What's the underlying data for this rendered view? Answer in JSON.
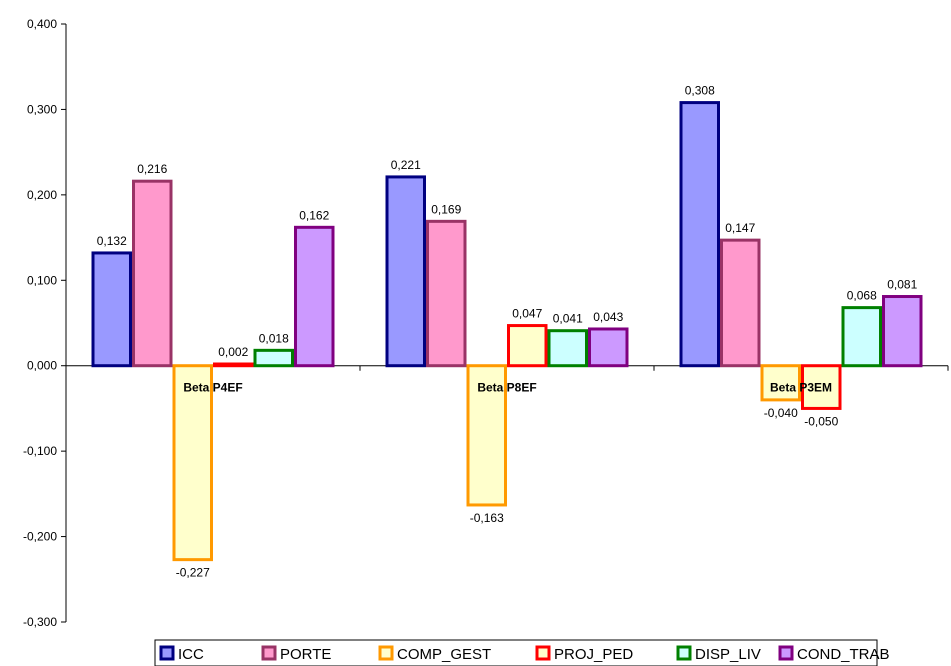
{
  "chart_data": {
    "type": "bar",
    "categories": [
      "Beta P4EF",
      "Beta P8EF",
      "Beta P3EM"
    ],
    "series": [
      {
        "name": "ICC",
        "values": [
          0.132,
          0.221,
          0.308
        ],
        "labels": [
          "0,132",
          "0,221",
          "0,308"
        ],
        "fill": "#9999FF",
        "stroke": "#000080"
      },
      {
        "name": "PORTE",
        "values": [
          0.216,
          0.169,
          0.147
        ],
        "labels": [
          "0,216",
          "0,169",
          "0,147"
        ],
        "fill": "#FF99CC",
        "stroke": "#993366"
      },
      {
        "name": "COMP_GEST",
        "values": [
          -0.227,
          -0.163,
          -0.04
        ],
        "labels": [
          "-0,227",
          "-0,163",
          "-0,040"
        ],
        "fill": "#FFFFCC",
        "stroke": "#FF9900"
      },
      {
        "name": "PROJ_PED",
        "values": [
          0.002,
          0.047,
          -0.05
        ],
        "labels": [
          "0,002",
          "0,047",
          "-0,050"
        ],
        "fill": "#FFFFCC",
        "stroke": "#FF0000"
      },
      {
        "name": "DISP_LIV",
        "values": [
          0.018,
          0.041,
          0.068
        ],
        "labels": [
          "0,018",
          "0,041",
          "0,068"
        ],
        "fill": "#CCFFFF",
        "stroke": "#008000"
      },
      {
        "name": "COND_TRAB",
        "values": [
          0.162,
          0.043,
          0.081
        ],
        "labels": [
          "0,162",
          "0,043",
          "0,081"
        ],
        "fill": "#CC99FF",
        "stroke": "#800080"
      }
    ],
    "yticks": [
      0.4,
      0.3,
      0.2,
      0.1,
      0.0,
      -0.1,
      -0.2,
      -0.3
    ],
    "ytick_labels": [
      "0,400",
      "0,300",
      "0,200",
      "0,100",
      "0,000",
      "-0,100",
      "-0,200",
      "-0,300"
    ],
    "ylim": [
      -0.3,
      0.4
    ],
    "grid": false,
    "legend_position": "bottom",
    "title": "",
    "xlabel": "",
    "ylabel": ""
  }
}
